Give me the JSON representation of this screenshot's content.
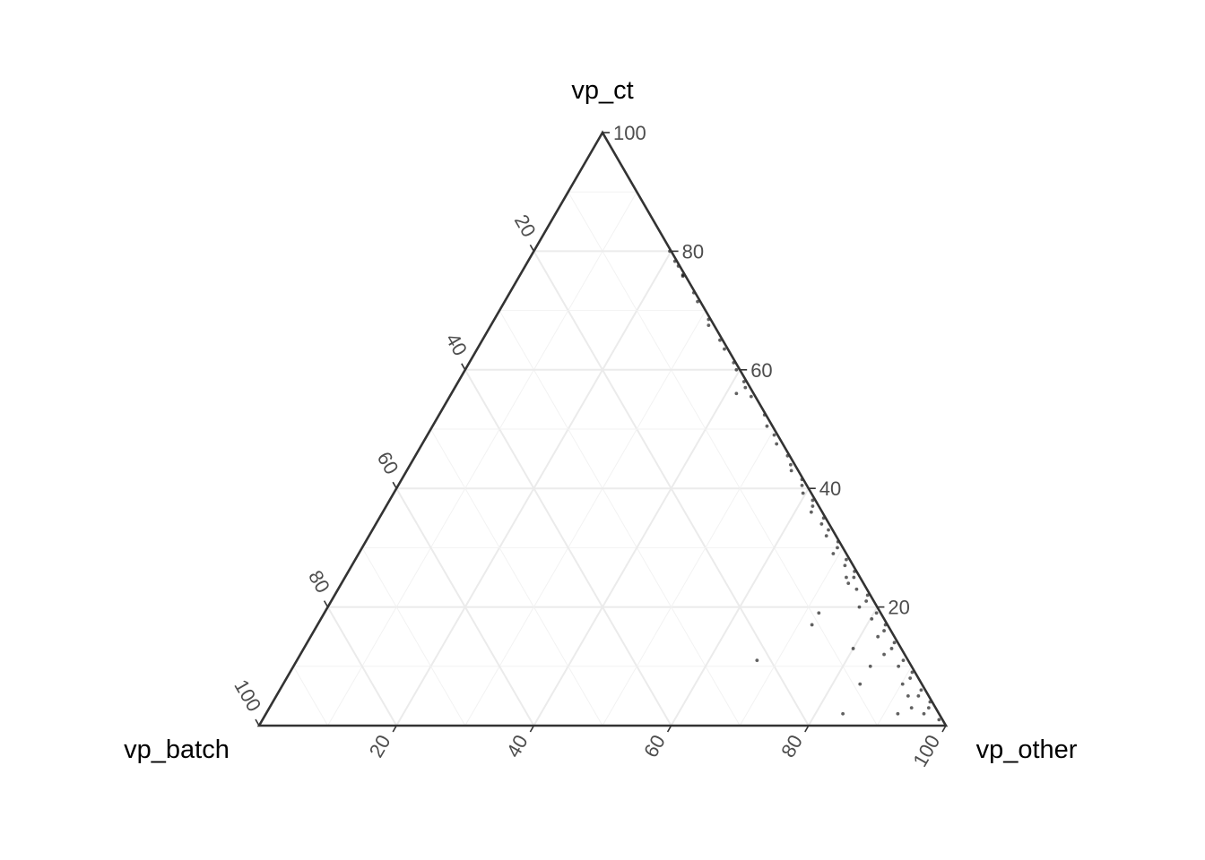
{
  "chart_data": {
    "type": "scatter",
    "subtype": "ternary",
    "axes": {
      "top": {
        "label": "vp_ct",
        "ticks": [
          20,
          40,
          60,
          80,
          100
        ]
      },
      "left": {
        "label": "vp_batch",
        "ticks": [
          20,
          40,
          60,
          80,
          100
        ]
      },
      "right": {
        "label": "vp_other",
        "ticks": [
          20,
          40,
          60,
          80,
          100
        ]
      }
    },
    "range": [
      0,
      100
    ],
    "grid": true,
    "legend": "none",
    "point_color": "#000000",
    "cluster": [
      [
        80.0,
        0.2
      ],
      [
        78.3,
        0.3
      ],
      [
        77.5,
        0.2
      ],
      [
        76.0,
        0.3
      ],
      [
        75.8,
        0.4
      ],
      [
        73.0,
        0.2
      ],
      [
        71.5,
        0.4
      ],
      [
        68.5,
        0.3
      ],
      [
        67.5,
        0.8
      ],
      [
        65.0,
        0.4
      ],
      [
        63.5,
        0.5
      ],
      [
        61.2,
        0.3
      ],
      [
        60.0,
        0.5
      ],
      [
        58.0,
        0.4
      ],
      [
        57.0,
        0.7
      ],
      [
        55.5,
        0.6
      ],
      [
        52.4,
        0.2
      ],
      [
        50.5,
        0.8
      ],
      [
        49.0,
        0.5
      ],
      [
        47.5,
        0.9
      ],
      [
        45.5,
        0.3
      ],
      [
        44.0,
        0.6
      ],
      [
        43.0,
        1.0
      ],
      [
        41.5,
        0.2
      ],
      [
        40.5,
        0.7
      ],
      [
        39.2,
        1.2
      ],
      [
        38.0,
        0.4
      ],
      [
        37.0,
        0.9
      ],
      [
        36.0,
        1.6
      ],
      [
        35.0,
        0.3
      ],
      [
        34.0,
        1.1
      ],
      [
        33.0,
        0.6
      ],
      [
        32.0,
        1.4
      ],
      [
        31.0,
        0.2
      ],
      [
        30.0,
        0.8
      ],
      [
        29.0,
        1.9
      ],
      [
        28.0,
        0.5
      ],
      [
        27.0,
        1.2
      ],
      [
        26.0,
        0.3
      ],
      [
        25.0,
        0.9
      ],
      [
        24.0,
        2.2
      ],
      [
        23.0,
        1.5
      ],
      [
        22.0,
        0.4
      ],
      [
        21.0,
        1.1
      ],
      [
        20.0,
        2.6
      ],
      [
        19.0,
        0.6
      ],
      [
        18.0,
        1.8
      ],
      [
        17.0,
        0.3
      ],
      [
        16.0,
        1.0
      ],
      [
        15.0,
        2.4
      ],
      [
        14.0,
        0.5
      ],
      [
        13.0,
        1.4
      ],
      [
        12.0,
        3.0
      ],
      [
        11.0,
        0.7
      ],
      [
        10.0,
        1.9
      ],
      [
        9.0,
        0.4
      ],
      [
        8.0,
        1.2
      ],
      [
        7.0,
        2.8
      ],
      [
        6.0,
        0.6
      ],
      [
        5.0,
        1.5
      ],
      [
        4.0,
        0.3
      ],
      [
        3.0,
        1.0
      ],
      [
        2.0,
        2.2
      ],
      [
        1.0,
        0.5
      ]
    ],
    "points": [
      {
        "ct": 11.0,
        "batch": 22.0,
        "other": 67.0
      },
      {
        "ct": 56.0,
        "batch": 2.5,
        "other": 41.5
      },
      {
        "ct": 19.0,
        "batch": 9.0,
        "other": 72.0
      },
      {
        "ct": 17.0,
        "batch": 11.0,
        "other": 72.0
      },
      {
        "ct": 13.0,
        "batch": 7.0,
        "other": 80.0
      },
      {
        "ct": 7.0,
        "batch": 9.0,
        "other": 84.0
      },
      {
        "ct": 10.0,
        "batch": 6.0,
        "other": 84.0
      },
      {
        "ct": 2.0,
        "batch": 14.0,
        "other": 84.0
      },
      {
        "ct": 2.0,
        "batch": 6.0,
        "other": 92.0
      },
      {
        "ct": 3.0,
        "batch": 3.5,
        "other": 93.5
      },
      {
        "ct": 25.0,
        "batch": 2.0,
        "other": 73.0
      },
      {
        "ct": 5.0,
        "batch": 3.0,
        "other": 92.0
      }
    ]
  }
}
